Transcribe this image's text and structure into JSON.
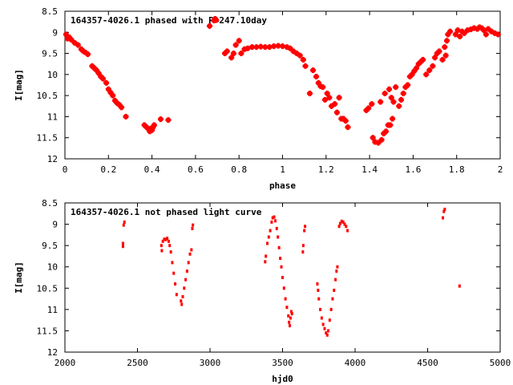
{
  "chart_data": [
    {
      "type": "scatter",
      "title": "164357-4026.1 phased with P=247.10day",
      "xlabel": "phase",
      "ylabel": "I[mag]",
      "xlim": [
        0,
        2
      ],
      "ylim": [
        12,
        8.5
      ],
      "y_inverted": true,
      "grid": false,
      "marker": "cross",
      "color": "#ff0000",
      "x_ticks": [
        "0",
        "0.2",
        "0.4",
        "0.6",
        "0.8",
        "1",
        "1.2",
        "1.4",
        "1.6",
        "1.8",
        "2"
      ],
      "x_tick_values": [
        0,
        0.2,
        0.4,
        0.6,
        0.8,
        1,
        1.2,
        1.4,
        1.6,
        1.8,
        2
      ],
      "y_ticks": [
        "8.5",
        "9",
        "9.5",
        "10",
        "10.5",
        "11",
        "11.5",
        "12"
      ],
      "y_tick_values": [
        8.5,
        9,
        9.5,
        10,
        10.5,
        11,
        11.5,
        12
      ],
      "series": [
        {
          "points": [
            [
              0.005,
              9.05
            ],
            [
              0.012,
              9.15
            ],
            [
              0.02,
              9.12
            ],
            [
              0.03,
              9.18
            ],
            [
              0.045,
              9.25
            ],
            [
              0.06,
              9.3
            ],
            [
              0.075,
              9.4
            ],
            [
              0.085,
              9.45
            ],
            [
              0.095,
              9.48
            ],
            [
              0.105,
              9.52
            ],
            [
              0.125,
              9.8
            ],
            [
              0.135,
              9.85
            ],
            [
              0.145,
              9.9
            ],
            [
              0.155,
              9.97
            ],
            [
              0.165,
              10.05
            ],
            [
              0.175,
              10.1
            ],
            [
              0.19,
              10.2
            ],
            [
              0.2,
              10.35
            ],
            [
              0.21,
              10.43
            ],
            [
              0.22,
              10.5
            ],
            [
              0.23,
              10.62
            ],
            [
              0.24,
              10.68
            ],
            [
              0.25,
              10.72
            ],
            [
              0.26,
              10.78
            ],
            [
              0.28,
              11.0
            ],
            [
              0.365,
              11.2
            ],
            [
              0.375,
              11.25
            ],
            [
              0.385,
              11.3
            ],
            [
              0.39,
              11.35
            ],
            [
              0.395,
              11.28
            ],
            [
              0.4,
              11.32
            ],
            [
              0.405,
              11.25
            ],
            [
              0.41,
              11.2
            ],
            [
              0.44,
              11.06
            ],
            [
              0.475,
              11.08
            ],
            [
              0.665,
              8.85
            ],
            [
              0.685,
              8.72
            ],
            [
              0.69,
              8.68
            ],
            [
              0.695,
              8.71
            ],
            [
              0.735,
              9.5
            ],
            [
              0.745,
              9.45
            ],
            [
              0.765,
              9.6
            ],
            [
              0.775,
              9.5
            ],
            [
              0.785,
              9.3
            ],
            [
              0.8,
              9.2
            ],
            [
              0.81,
              9.5
            ],
            [
              0.825,
              9.4
            ],
            [
              0.84,
              9.38
            ],
            [
              0.86,
              9.35
            ],
            [
              0.88,
              9.35
            ],
            [
              0.9,
              9.34
            ],
            [
              0.92,
              9.35
            ],
            [
              0.94,
              9.35
            ],
            [
              0.96,
              9.33
            ],
            [
              0.98,
              9.32
            ],
            [
              1.0,
              9.33
            ],
            [
              1.02,
              9.35
            ],
            [
              1.035,
              9.38
            ],
            [
              1.05,
              9.45
            ],
            [
              1.065,
              9.5
            ],
            [
              1.08,
              9.55
            ],
            [
              1.095,
              9.65
            ],
            [
              1.105,
              9.8
            ],
            [
              1.125,
              10.45
            ],
            [
              1.14,
              9.9
            ],
            [
              1.155,
              10.05
            ],
            [
              1.165,
              10.2
            ],
            [
              1.175,
              10.28
            ],
            [
              1.185,
              10.3
            ],
            [
              1.195,
              10.6
            ],
            [
              1.205,
              10.45
            ],
            [
              1.215,
              10.55
            ],
            [
              1.225,
              10.75
            ],
            [
              1.24,
              10.7
            ],
            [
              1.25,
              10.9
            ],
            [
              1.26,
              10.55
            ],
            [
              1.27,
              11.05
            ],
            [
              1.28,
              11.05
            ],
            [
              1.29,
              11.1
            ],
            [
              1.3,
              11.25
            ],
            [
              1.385,
              10.85
            ],
            [
              1.395,
              10.8
            ],
            [
              1.41,
              10.7
            ],
            [
              1.415,
              11.5
            ],
            [
              1.425,
              11.6
            ],
            [
              1.44,
              11.62
            ],
            [
              1.455,
              11.55
            ],
            [
              1.465,
              11.4
            ],
            [
              1.475,
              11.35
            ],
            [
              1.485,
              11.2
            ],
            [
              1.495,
              11.2
            ],
            [
              1.505,
              11.05
            ],
            [
              1.45,
              10.65
            ],
            [
              1.47,
              10.45
            ],
            [
              1.49,
              10.35
            ],
            [
              1.5,
              10.55
            ],
            [
              1.51,
              10.65
            ],
            [
              1.52,
              10.3
            ],
            [
              1.535,
              10.75
            ],
            [
              1.545,
              10.6
            ],
            [
              1.555,
              10.45
            ],
            [
              1.565,
              10.3
            ],
            [
              1.575,
              10.25
            ],
            [
              1.585,
              10.05
            ],
            [
              1.595,
              10.0
            ],
            [
              1.605,
              9.92
            ],
            [
              1.615,
              9.85
            ],
            [
              1.625,
              9.75
            ],
            [
              1.635,
              9.7
            ],
            [
              1.645,
              9.65
            ],
            [
              1.66,
              10.0
            ],
            [
              1.675,
              9.9
            ],
            [
              1.69,
              9.8
            ],
            [
              1.7,
              9.6
            ],
            [
              1.71,
              9.5
            ],
            [
              1.72,
              9.45
            ],
            [
              1.735,
              9.65
            ],
            [
              1.745,
              9.35
            ],
            [
              1.75,
              9.55
            ],
            [
              1.755,
              9.2
            ],
            [
              1.76,
              9.05
            ],
            [
              1.77,
              8.98
            ],
            [
              1.795,
              9.05
            ],
            [
              1.805,
              8.95
            ],
            [
              1.815,
              9.1
            ],
            [
              1.825,
              8.98
            ],
            [
              1.835,
              9.02
            ],
            [
              1.85,
              8.95
            ],
            [
              1.865,
              8.93
            ],
            [
              1.88,
              8.9
            ],
            [
              1.895,
              8.92
            ],
            [
              1.905,
              8.88
            ],
            [
              1.915,
              8.9
            ],
            [
              1.925,
              8.95
            ],
            [
              1.935,
              9.05
            ],
            [
              1.945,
              8.92
            ],
            [
              1.96,
              8.98
            ],
            [
              1.975,
              9.02
            ],
            [
              1.99,
              9.05
            ]
          ]
        }
      ]
    },
    {
      "type": "scatter",
      "title": "164357-4026.1 not phased light curve",
      "xlabel": "hjd0",
      "ylabel": "I[mag]",
      "xlim": [
        2000,
        5000
      ],
      "ylim": [
        12,
        8.5
      ],
      "y_inverted": true,
      "grid": false,
      "marker": "dot",
      "color": "#ff0000",
      "x_ticks": [
        "2000",
        "2500",
        "3000",
        "3500",
        "4000",
        "4500",
        "5000"
      ],
      "x_tick_values": [
        2000,
        2500,
        3000,
        3500,
        4000,
        4500,
        5000
      ],
      "y_ticks": [
        "8.5",
        "9",
        "9.5",
        "10",
        "10.5",
        "11",
        "11.5",
        "12"
      ],
      "y_tick_values": [
        8.5,
        9,
        9.5,
        10,
        10.5,
        11,
        11.5,
        12
      ],
      "series": [
        {
          "points": [
            [
              2400,
              9.45
            ],
            [
              2400,
              9.52
            ],
            [
              2405,
              9.02
            ],
            [
              2410,
              8.95
            ],
            [
              2665,
              9.5
            ],
            [
              2668,
              9.62
            ],
            [
              2675,
              9.4
            ],
            [
              2685,
              9.35
            ],
            [
              2695,
              9.36
            ],
            [
              2705,
              9.33
            ],
            [
              2715,
              9.4
            ],
            [
              2722,
              9.5
            ],
            [
              2730,
              9.65
            ],
            [
              2740,
              9.9
            ],
            [
              2750,
              10.15
            ],
            [
              2760,
              10.4
            ],
            [
              2770,
              10.65
            ],
            [
              2800,
              10.8
            ],
            [
              2805,
              10.88
            ],
            [
              2812,
              10.7
            ],
            [
              2822,
              10.5
            ],
            [
              2832,
              10.3
            ],
            [
              2842,
              10.1
            ],
            [
              2852,
              9.9
            ],
            [
              2862,
              9.7
            ],
            [
              2872,
              9.6
            ],
            [
              2878,
              9.1
            ],
            [
              2882,
              9.02
            ],
            [
              3380,
              9.88
            ],
            [
              3385,
              9.75
            ],
            [
              3395,
              9.45
            ],
            [
              3405,
              9.3
            ],
            [
              3415,
              9.15
            ],
            [
              3425,
              8.95
            ],
            [
              3432,
              8.85
            ],
            [
              3442,
              8.83
            ],
            [
              3450,
              8.92
            ],
            [
              3460,
              9.1
            ],
            [
              3468,
              9.3
            ],
            [
              3476,
              9.55
            ],
            [
              3484,
              9.8
            ],
            [
              3492,
              10.0
            ],
            [
              3500,
              10.25
            ],
            [
              3510,
              10.5
            ],
            [
              3520,
              10.75
            ],
            [
              3530,
              10.95
            ],
            [
              3540,
              11.15
            ],
            [
              3545,
              11.3
            ],
            [
              3550,
              11.38
            ],
            [
              3555,
              11.2
            ],
            [
              3560,
              11.05
            ],
            [
              3565,
              11.1
            ],
            [
              3640,
              9.65
            ],
            [
              3643,
              9.5
            ],
            [
              3650,
              9.15
            ],
            [
              3655,
              9.05
            ],
            [
              3740,
              10.4
            ],
            [
              3745,
              10.55
            ],
            [
              3750,
              10.75
            ],
            [
              3760,
              11.0
            ],
            [
              3770,
              11.2
            ],
            [
              3780,
              11.35
            ],
            [
              3790,
              11.45
            ],
            [
              3800,
              11.55
            ],
            [
              3808,
              11.6
            ],
            [
              3815,
              11.5
            ],
            [
              3825,
              11.25
            ],
            [
              3835,
              11.0
            ],
            [
              3845,
              10.75
            ],
            [
              3855,
              10.55
            ],
            [
              3865,
              10.3
            ],
            [
              3872,
              10.1
            ],
            [
              3878,
              10.0
            ],
            [
              3890,
              9.05
            ],
            [
              3898,
              8.98
            ],
            [
              3908,
              8.93
            ],
            [
              3918,
              8.95
            ],
            [
              3928,
              9.0
            ],
            [
              3938,
              9.05
            ],
            [
              3948,
              9.15
            ],
            [
              4605,
              8.85
            ],
            [
              4612,
              8.7
            ],
            [
              4618,
              8.65
            ],
            [
              4720,
              10.45
            ]
          ]
        }
      ]
    }
  ]
}
